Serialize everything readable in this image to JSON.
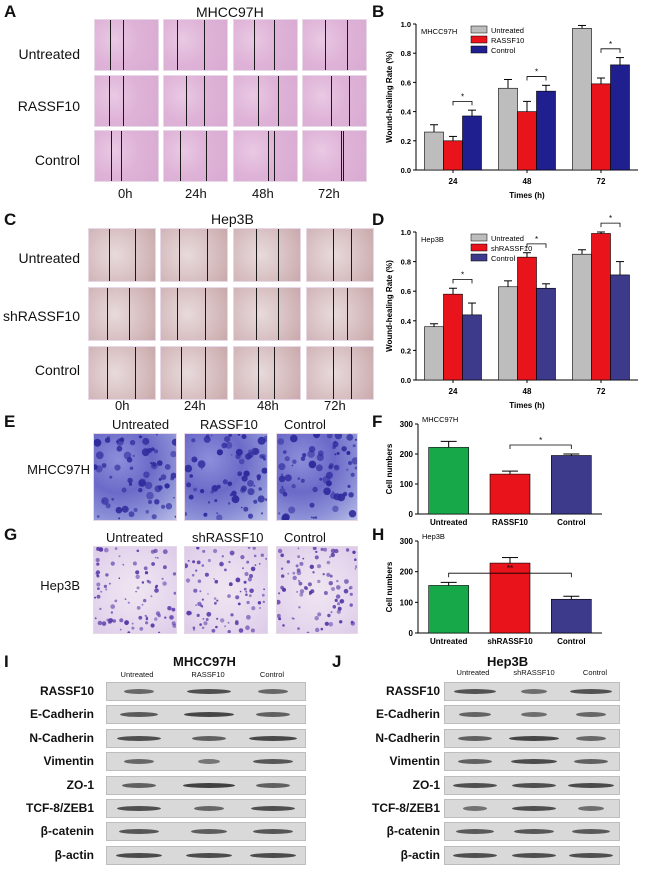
{
  "panels": {
    "A": {
      "label": "A",
      "title": "MHCC97H",
      "rows": [
        "Untreated",
        "RASSF10",
        "Control"
      ],
      "times": [
        "0h",
        "24h",
        "48h",
        "72h"
      ]
    },
    "B": {
      "label": "B"
    },
    "C": {
      "label": "C",
      "title": "Hep3B",
      "rows": [
        "Untreated",
        "shRASSF10",
        "Control"
      ],
      "times": [
        "0h",
        "24h",
        "48h",
        "72h"
      ]
    },
    "D": {
      "label": "D"
    },
    "E": {
      "label": "E",
      "rowlabel": "MHCC97H",
      "cols": [
        "Untreated",
        "RASSF10",
        "Control"
      ]
    },
    "F": {
      "label": "F"
    },
    "G": {
      "label": "G",
      "rowlabel": "Hep3B",
      "cols": [
        "Untreated",
        "shRASSF10",
        "Control"
      ]
    },
    "H": {
      "label": "H"
    },
    "I": {
      "label": "I",
      "title": "MHCC97H",
      "cols": [
        "Untreated",
        "RASSF10",
        "Control"
      ],
      "proteins": [
        "RASSF10",
        "E-Cadherin",
        "N-Cadherin",
        "Vimentin",
        "ZO-1",
        "TCF-8/ZEB1",
        "β-catenin",
        "β-actin"
      ]
    },
    "J": {
      "label": "J",
      "title": "Hep3B",
      "cols": [
        "Untreated",
        "shRASSF10",
        "Control"
      ],
      "proteins": [
        "RASSF10",
        "E-Cadherin",
        "N-Cadherin",
        "Vimentin",
        "ZO-1",
        "TCF-8/ZEB1",
        "β-catenin",
        "β-actin"
      ]
    }
  },
  "colors": {
    "untreated": "#bdbdbd",
    "treated": "#e8131b",
    "control": "#1f1f8f",
    "f_untreated": "#17a84a",
    "f_control": "#3d3a8c"
  },
  "chart_data": [
    {
      "id": "B",
      "type": "bar",
      "inset_label": "MHCC97H",
      "categories": [
        "24",
        "48",
        "72"
      ],
      "series": [
        {
          "name": "Untreated",
          "values": [
            0.26,
            0.56,
            0.97
          ],
          "errors": [
            0.05,
            0.06,
            0.02
          ]
        },
        {
          "name": "RASSF10",
          "values": [
            0.2,
            0.4,
            0.59
          ],
          "errors": [
            0.03,
            0.07,
            0.04
          ]
        },
        {
          "name": "Control",
          "values": [
            0.37,
            0.54,
            0.72
          ],
          "errors": [
            0.04,
            0.04,
            0.05
          ]
        }
      ],
      "xlabel": "Times (h)",
      "ylabel": "Wound-healing Rate (%)",
      "ylim": [
        0,
        1.0
      ],
      "yticks": [
        "0.0",
        "0.2",
        "0.4",
        "0.6",
        "0.8",
        "1.0"
      ],
      "significance": [
        "*",
        "*",
        "*"
      ],
      "legend": "top"
    },
    {
      "id": "D",
      "type": "bar",
      "inset_label": "Hep3B",
      "categories": [
        "24",
        "48",
        "72"
      ],
      "series": [
        {
          "name": "Untreated",
          "values": [
            0.36,
            0.63,
            0.85
          ],
          "errors": [
            0.02,
            0.04,
            0.03
          ]
        },
        {
          "name": "shRASSF10",
          "values": [
            0.58,
            0.83,
            0.99
          ],
          "errors": [
            0.04,
            0.03,
            0.01
          ]
        },
        {
          "name": "Control",
          "values": [
            0.44,
            0.62,
            0.71
          ],
          "errors": [
            0.08,
            0.03,
            0.09
          ]
        }
      ],
      "xlabel": "Times (h)",
      "ylabel": "Wound-healing Rate (%)",
      "ylim": [
        0,
        1.0
      ],
      "yticks": [
        "0.0",
        "0.2",
        "0.4",
        "0.6",
        "0.8",
        "1.0"
      ],
      "significance": [
        "*",
        "*",
        "*"
      ],
      "legend": "top"
    },
    {
      "id": "F",
      "type": "bar",
      "inset_label": "MHCC97H",
      "categories": [
        "Untreated",
        "RASSF10",
        "Control"
      ],
      "values": [
        222,
        133,
        195
      ],
      "errors": [
        20,
        10,
        5
      ],
      "ylabel": "Cell numbers",
      "ylim": [
        0,
        300
      ],
      "yticks": [
        "0",
        "100",
        "200",
        "300"
      ],
      "significance": [
        "*"
      ]
    },
    {
      "id": "H",
      "type": "bar",
      "inset_label": "Hep3B",
      "categories": [
        "Untreated",
        "shRASSF10",
        "Control"
      ],
      "values": [
        155,
        228,
        110
      ],
      "errors": [
        10,
        18,
        10
      ],
      "ylabel": "Cell numbers",
      "ylim": [
        0,
        300
      ],
      "yticks": [
        "0",
        "100",
        "200",
        "300"
      ],
      "significance": [
        "**"
      ]
    }
  ]
}
